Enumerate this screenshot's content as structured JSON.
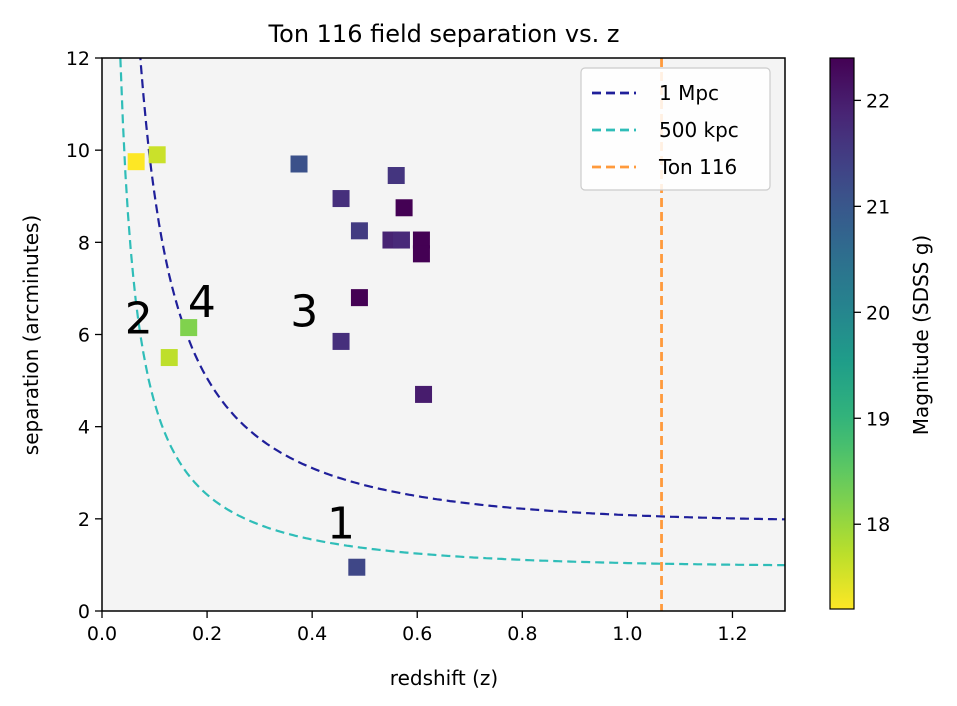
{
  "chart_data": {
    "type": "scatter",
    "title": "Ton 116 field separation vs. z",
    "xlabel": "redshift (z)",
    "ylabel": "separation (arcminutes)",
    "xlim": [
      0.0,
      1.3
    ],
    "ylim": [
      0,
      12
    ],
    "xticks": [
      "0.0",
      "0.2",
      "0.4",
      "0.6",
      "0.8",
      "1.0",
      "1.2"
    ],
    "yticks": [
      "0",
      "2",
      "4",
      "6",
      "8",
      "10",
      "12"
    ],
    "background": "#f4f4f4",
    "grid": false,
    "colorbar": {
      "label": "Magnitude (SDSS g)",
      "colormap": "viridis",
      "range": [
        17.2,
        22.4
      ],
      "ticks": [
        "18",
        "19",
        "20",
        "21",
        "22"
      ]
    },
    "legend": {
      "position": "top-right",
      "entries": [
        {
          "label": "1 Mpc",
          "color": "#1f1f9a",
          "style": "dashed"
        },
        {
          "label": "500 kpc",
          "color": "#2fbdb8",
          "style": "dashed"
        },
        {
          "label": "Ton 116",
          "color": "#ff9a3c",
          "style": "dashed"
        }
      ]
    },
    "lines": [
      {
        "name": "1 Mpc",
        "color": "#1f1f9a",
        "kpc": 1000
      },
      {
        "name": "500 kpc",
        "color": "#2fbdb8",
        "kpc": 500
      }
    ],
    "vline": {
      "name": "Ton 116",
      "x": 1.065,
      "color": "#ff9a3c"
    },
    "points": [
      {
        "x": 0.065,
        "y": 9.75,
        "mag": 17.2
      },
      {
        "x": 0.105,
        "y": 9.9,
        "mag": 17.6
      },
      {
        "x": 0.128,
        "y": 5.5,
        "mag": 17.7
      },
      {
        "x": 0.165,
        "y": 6.15,
        "mag": 18.2
      },
      {
        "x": 0.375,
        "y": 9.7,
        "mag": 21.1
      },
      {
        "x": 0.455,
        "y": 8.95,
        "mag": 21.7
      },
      {
        "x": 0.49,
        "y": 8.25,
        "mag": 21.5
      },
      {
        "x": 0.49,
        "y": 6.8,
        "mag": 22.4
      },
      {
        "x": 0.455,
        "y": 5.85,
        "mag": 21.7
      },
      {
        "x": 0.56,
        "y": 9.45,
        "mag": 21.6
      },
      {
        "x": 0.575,
        "y": 8.75,
        "mag": 22.4
      },
      {
        "x": 0.55,
        "y": 8.05,
        "mag": 21.9
      },
      {
        "x": 0.57,
        "y": 8.05,
        "mag": 21.8
      },
      {
        "x": 0.608,
        "y": 8.05,
        "mag": 22.4
      },
      {
        "x": 0.608,
        "y": 7.75,
        "mag": 22.4
      },
      {
        "x": 0.612,
        "y": 4.7,
        "mag": 22.0
      },
      {
        "x": 0.485,
        "y": 0.95,
        "mag": 21.3
      }
    ],
    "annotations": [
      {
        "text": "1",
        "x": 0.455,
        "y": 1.9
      },
      {
        "text": "2",
        "x": 0.07,
        "y": 6.35
      },
      {
        "text": "3",
        "x": 0.385,
        "y": 6.5
      },
      {
        "text": "4",
        "x": 0.19,
        "y": 6.7
      }
    ]
  }
}
